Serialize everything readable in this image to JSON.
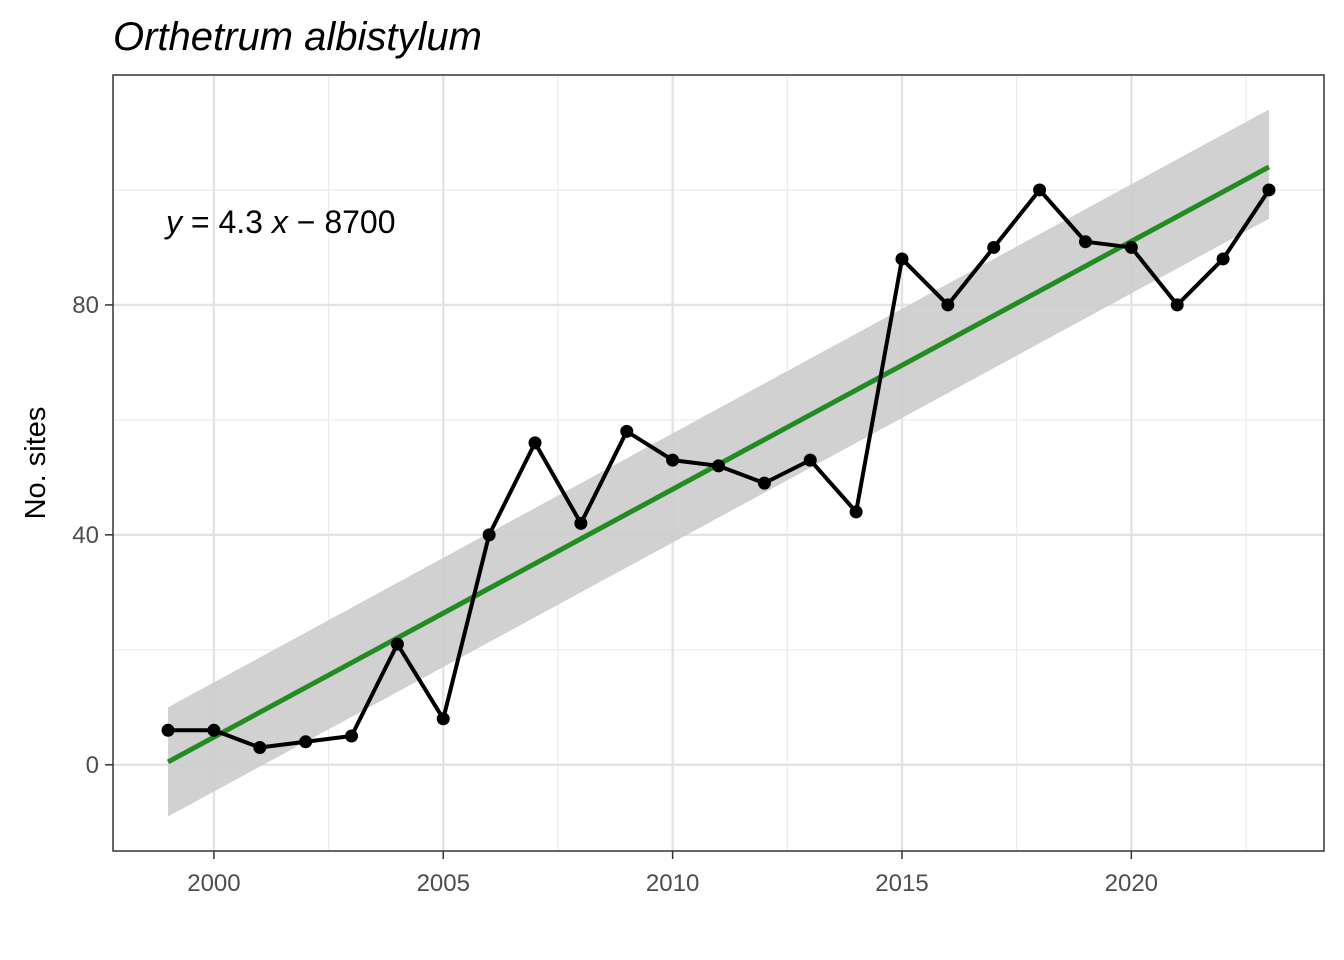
{
  "chart_data": {
    "type": "line",
    "title": "Orthetrum albistylum",
    "xlabel": "",
    "ylabel": "No. sites",
    "xlim": [
      1997.8,
      2024.2
    ],
    "ylim": [
      -15,
      120
    ],
    "x_ticks": [
      2000,
      2005,
      2010,
      2015,
      2020
    ],
    "x_tick_labels": [
      "2000",
      "2005",
      "2010",
      "2015",
      "2020"
    ],
    "y_ticks": [
      0,
      40,
      80
    ],
    "y_tick_labels": [
      "0",
      "40",
      "80"
    ],
    "grid": true,
    "series": [
      {
        "x": [
          1999,
          2000,
          2001,
          2002,
          2003,
          2004,
          2005,
          2006,
          2007,
          2008,
          2009,
          2010,
          2011,
          2012,
          2013,
          2014,
          2015,
          2016,
          2017,
          2018,
          2019,
          2020,
          2021,
          2022,
          2023
        ],
        "values": [
          6,
          6,
          3,
          4,
          5,
          21,
          8,
          40,
          56,
          42,
          58,
          53,
          52,
          49,
          53,
          44,
          88,
          80,
          90,
          100,
          91,
          90,
          80,
          88,
          100
        ],
        "color": "#000000"
      }
    ],
    "trend": {
      "x": [
        1999,
        2023
      ],
      "y": [
        0.5,
        104
      ],
      "ci_lower": [
        -9,
        95
      ],
      "ci_upper": [
        10,
        114
      ],
      "color": "#228b22",
      "band_color": "#cccccc"
    },
    "annotation": {
      "y_var": "y",
      "equals": "=",
      "coef": "4.3",
      "x_var": "x",
      "minus": "−",
      "intercept": "8700"
    }
  }
}
